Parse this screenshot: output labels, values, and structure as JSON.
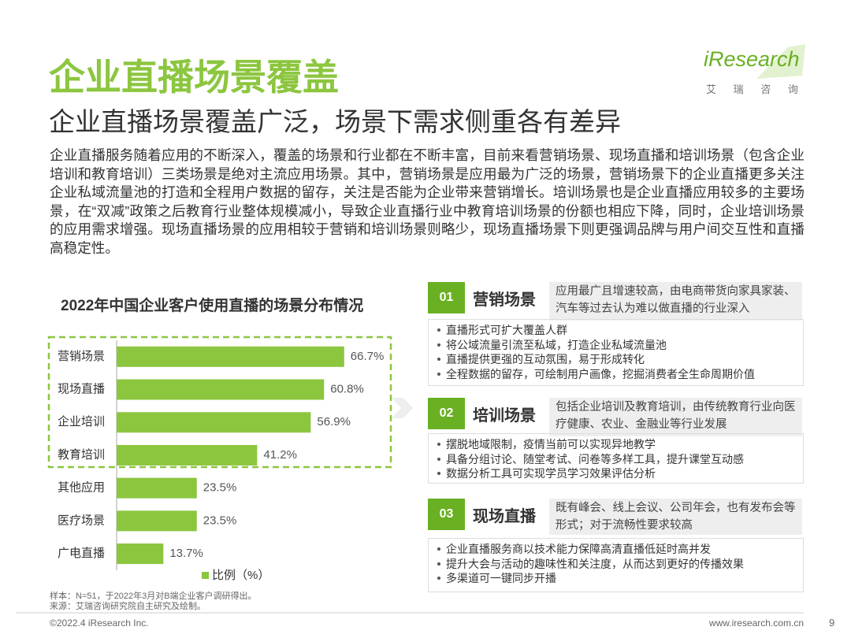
{
  "header": {
    "title": "企业直播场景覆盖",
    "subtitle": "企业直播场景覆盖广泛，场景下需求侧重各有差异",
    "logo": "iResearch",
    "logo_sub": "艾 瑞 咨 询"
  },
  "intro": "企业直播服务随着应用的不断深入，覆盖的场景和行业都在不断丰富，目前来看营销场景、现场直播和培训场景（包含企业培训和教育培训）三类场景是绝对主流应用场景。其中，营销场景是应用最为广泛的场景，营销场景下的企业直播更多关注企业私域流量池的打造和全程用户数据的留存，关注是否能为企业带来营销增长。培训场景也是企业直播应用较多的主要场景，在“双减”政策之后教育行业整体规模减小，导致企业直播行业中教育培训场景的份额也相应下降，同时，企业培训场景的应用需求增强。现场直播场景的应用相较于营销和培训场景则略少，现场直播场景下则更强调品牌与用户间交互性和直播高稳定性。",
  "chart_data": {
    "type": "bar",
    "orientation": "horizontal",
    "title": "2022年中国企业客户使用直播的场景分布情况",
    "categories": [
      "营销场景",
      "现场直播",
      "企业培训",
      "教育培训",
      "其他应用",
      "医疗场景",
      "广电直播"
    ],
    "series": [
      {
        "name": "比例（%）",
        "color": "#8cc63f",
        "values": [
          66.7,
          60.8,
          56.9,
          41.2,
          23.5,
          23.5,
          13.7
        ],
        "value_labels": [
          "66.7%",
          "60.8%",
          "56.9%",
          "41.2%",
          "23.5%",
          "23.5%",
          "13.7%"
        ]
      }
    ],
    "xlim": [
      0,
      100
    ]
  },
  "notes": [
    "样本：N=51，于2022年3月对B端企业客户调研得出。",
    "来源：艾瑞咨询研究院自主研究及绘制。"
  ],
  "scenarios": [
    {
      "number": "01",
      "title": "营销场景",
      "description": "应用最广且增速较高，由电商带货向家具家装、汽车等过去认为难以做直播的行业深入",
      "points": [
        "直播形式可扩大覆盖人群",
        "将公域流量引流至私域，打造企业私域流量池",
        "直播提供更强的互动氛围，易于形成转化",
        "全程数据的留存，可绘制用户画像，挖掘消费者全生命周期价值"
      ]
    },
    {
      "number": "02",
      "title": "培训场景",
      "description": "包括企业培训及教育培训，由传统教育行业向医疗健康、农业、金融业等行业发展",
      "points": [
        "摆脱地域限制，疫情当前可以实现异地教学",
        "具备分组讨论、随堂考试、问卷等多样工具，提升课堂互动感",
        "数据分析工具可实现学员学习效果评估分析"
      ]
    },
    {
      "number": "03",
      "title": "现场直播",
      "description": "既有峰会、线上会议、公司年会，也有发布会等形式；对于流畅性要求较高",
      "points": [
        "企业直播服务商以技术能力保障高清直播低延时高并发",
        "提升大会与活动的趣味性和关注度，从而达到更好的传播效果",
        "多渠道可一键同步开播"
      ]
    }
  ],
  "footer": {
    "copyright": "©2022.4 iResearch Inc.",
    "url": "www.iresearch.com.cn",
    "page": "9"
  }
}
